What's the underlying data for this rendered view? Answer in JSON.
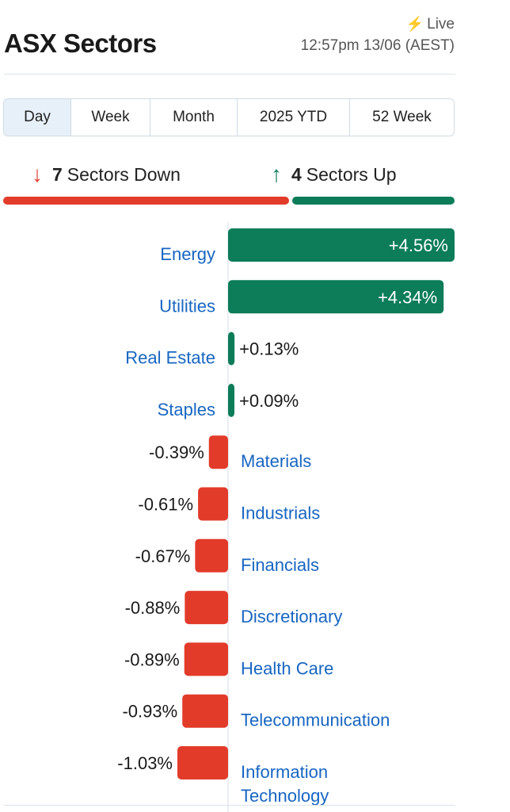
{
  "header": {
    "title": "ASX Sectors",
    "live_label": "Live",
    "timestamp": "12:57pm 13/06 (AEST)"
  },
  "tabs": [
    {
      "label": "Day",
      "active": true
    },
    {
      "label": "Week",
      "active": false
    },
    {
      "label": "Month",
      "active": false
    },
    {
      "label": "2025 YTD",
      "active": false
    },
    {
      "label": "52 Week",
      "active": false
    }
  ],
  "summary": {
    "down_count": "7",
    "down_text": "Sectors Down",
    "up_count": "4",
    "up_text": "Sectors Up",
    "down_fraction": 0.636
  },
  "colors": {
    "up": "#0c7c59",
    "down": "#e23b2a",
    "link": "#1766c2",
    "active_tab": "#e7f0f8"
  },
  "chart_data": {
    "type": "bar",
    "orientation": "horizontal",
    "categories": [
      "Energy",
      "Utilities",
      "Real Estate",
      "Staples",
      "Materials",
      "Industrials",
      "Financials",
      "Discretionary",
      "Health Care",
      "Telecommunication",
      "Information Technology"
    ],
    "category_lines": [
      [
        "Energy"
      ],
      [
        "Utilities"
      ],
      [
        "Real Estate"
      ],
      [
        "Staples"
      ],
      [
        "Materials"
      ],
      [
        "Industrials"
      ],
      [
        "Financials"
      ],
      [
        "Discretionary"
      ],
      [
        "Health Care"
      ],
      [
        "Telecommunication"
      ],
      [
        "Information",
        "Technology"
      ]
    ],
    "values": [
      4.56,
      4.34,
      0.13,
      0.09,
      -0.39,
      -0.61,
      -0.67,
      -0.88,
      -0.89,
      -0.93,
      -1.03
    ],
    "value_labels": [
      "+4.56%",
      "+4.34%",
      "+0.13%",
      "+0.09%",
      "-0.39%",
      "-0.61%",
      "-0.67%",
      "-0.88%",
      "-0.89%",
      "-0.93%",
      "-1.03%"
    ]
  }
}
